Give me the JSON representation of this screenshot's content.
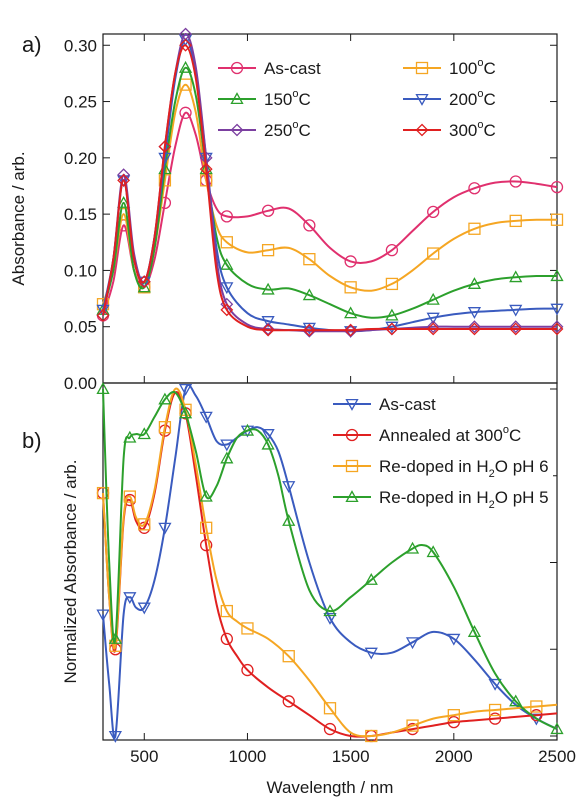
{
  "chart_data": [
    {
      "panel_label": "a)",
      "type": "line",
      "xlabel": "",
      "ylabel": "Absorbance / arb.",
      "xlim": [
        300,
        2500
      ],
      "ylim": [
        0.0,
        0.31
      ],
      "y_ticks": [
        "0.00",
        "0.05",
        "0.10",
        "0.15",
        "0.20",
        "0.25",
        "0.30"
      ],
      "y_tick_values": [
        0.0,
        0.05,
        0.1,
        0.15,
        0.2,
        0.25,
        0.3
      ],
      "legend_position": "top-right",
      "grid": false,
      "series": [
        {
          "name": "As-cast",
          "label_main": "As-cast",
          "label_sup": "",
          "label_tail": "",
          "color": "#e0306e",
          "marker": "circle",
          "x": [
            300,
            350,
            400,
            450,
            500,
            550,
            600,
            650,
            700,
            750,
            800,
            850,
            900,
            1000,
            1100,
            1200,
            1300,
            1400,
            1500,
            1600,
            1700,
            1800,
            1900,
            2000,
            2100,
            2200,
            2300,
            2400,
            2500
          ],
          "y": [
            0.06,
            0.09,
            0.14,
            0.1,
            0.085,
            0.11,
            0.16,
            0.21,
            0.24,
            0.22,
            0.18,
            0.155,
            0.148,
            0.148,
            0.153,
            0.155,
            0.14,
            0.12,
            0.108,
            0.108,
            0.118,
            0.135,
            0.152,
            0.165,
            0.173,
            0.178,
            0.179,
            0.177,
            0.174
          ]
        },
        {
          "name": "100°C",
          "label_main": "100",
          "label_sup": "o",
          "label_tail": "C",
          "color": "#f5a623",
          "marker": "square",
          "x": [
            300,
            350,
            400,
            450,
            500,
            550,
            600,
            650,
            700,
            750,
            800,
            850,
            900,
            1000,
            1100,
            1200,
            1300,
            1400,
            1500,
            1600,
            1700,
            1800,
            1900,
            2000,
            2100,
            2200,
            2300,
            2400,
            2500
          ],
          "y": [
            0.07,
            0.1,
            0.15,
            0.1,
            0.085,
            0.12,
            0.18,
            0.24,
            0.265,
            0.24,
            0.18,
            0.14,
            0.125,
            0.116,
            0.118,
            0.12,
            0.11,
            0.095,
            0.085,
            0.082,
            0.088,
            0.1,
            0.115,
            0.128,
            0.137,
            0.142,
            0.144,
            0.145,
            0.145
          ]
        },
        {
          "name": "150°C",
          "label_main": "150",
          "label_sup": "o",
          "label_tail": "C",
          "color": "#2ca02c",
          "marker": "triangle-up",
          "x": [
            300,
            350,
            400,
            450,
            500,
            550,
            600,
            650,
            700,
            750,
            800,
            850,
            900,
            1000,
            1100,
            1200,
            1300,
            1400,
            1500,
            1600,
            1700,
            1800,
            1900,
            2000,
            2100,
            2200,
            2300,
            2400,
            2500
          ],
          "y": [
            0.065,
            0.1,
            0.16,
            0.1,
            0.085,
            0.12,
            0.19,
            0.25,
            0.28,
            0.255,
            0.19,
            0.13,
            0.105,
            0.088,
            0.083,
            0.084,
            0.078,
            0.07,
            0.062,
            0.058,
            0.06,
            0.066,
            0.074,
            0.082,
            0.088,
            0.092,
            0.094,
            0.095,
            0.095
          ]
        },
        {
          "name": "200°C",
          "label_main": "200",
          "label_sup": "o",
          "label_tail": "C",
          "color": "#3a5bbf",
          "marker": "triangle-down",
          "x": [
            300,
            350,
            400,
            450,
            500,
            550,
            600,
            650,
            700,
            750,
            800,
            850,
            900,
            1000,
            1100,
            1200,
            1300,
            1400,
            1500,
            1600,
            1700,
            1800,
            1900,
            2000,
            2100,
            2200,
            2300,
            2400,
            2500
          ],
          "y": [
            0.065,
            0.11,
            0.18,
            0.11,
            0.09,
            0.13,
            0.2,
            0.27,
            0.305,
            0.275,
            0.2,
            0.12,
            0.085,
            0.062,
            0.055,
            0.052,
            0.049,
            0.047,
            0.046,
            0.047,
            0.05,
            0.054,
            0.058,
            0.061,
            0.063,
            0.064,
            0.065,
            0.066,
            0.066
          ]
        },
        {
          "name": "250°C",
          "label_main": "250",
          "label_sup": "o",
          "label_tail": "C",
          "color": "#7b3fa0",
          "marker": "diamond",
          "x": [
            300,
            350,
            400,
            450,
            500,
            550,
            600,
            650,
            700,
            750,
            800,
            850,
            900,
            1000,
            1100,
            1200,
            1300,
            1400,
            1500,
            1600,
            1700,
            1800,
            1900,
            2000,
            2100,
            2200,
            2300,
            2400,
            2500
          ],
          "y": [
            0.06,
            0.11,
            0.185,
            0.115,
            0.09,
            0.13,
            0.21,
            0.275,
            0.31,
            0.28,
            0.2,
            0.11,
            0.07,
            0.052,
            0.048,
            0.047,
            0.046,
            0.046,
            0.046,
            0.047,
            0.048,
            0.049,
            0.05,
            0.05,
            0.05,
            0.05,
            0.05,
            0.05,
            0.05
          ]
        },
        {
          "name": "300°C",
          "label_main": "300",
          "label_sup": "o",
          "label_tail": "C",
          "color": "#e02020",
          "marker": "diamond",
          "x": [
            300,
            350,
            400,
            450,
            500,
            550,
            600,
            650,
            700,
            750,
            800,
            850,
            900,
            1000,
            1100,
            1200,
            1300,
            1400,
            1500,
            1600,
            1700,
            1800,
            1900,
            2000,
            2100,
            2200,
            2300,
            2400,
            2500
          ],
          "y": [
            0.06,
            0.11,
            0.18,
            0.11,
            0.09,
            0.13,
            0.21,
            0.275,
            0.3,
            0.27,
            0.19,
            0.1,
            0.065,
            0.05,
            0.047,
            0.047,
            0.047,
            0.047,
            0.047,
            0.048,
            0.048,
            0.048,
            0.048,
            0.048,
            0.048,
            0.048,
            0.048,
            0.048,
            0.048
          ]
        }
      ]
    },
    {
      "panel_label": "b)",
      "type": "line",
      "xlabel": "Wavelength / nm",
      "ylabel": "Normalized Absorbance / arb.",
      "xlim": [
        300,
        2500
      ],
      "x_ticks": [
        "500",
        "1000",
        "1500",
        "2000",
        "2500"
      ],
      "x_tick_values": [
        500,
        1000,
        1500,
        2000,
        2500
      ],
      "ylim": [
        0,
        1
      ],
      "legend_position": "top-right",
      "grid": false,
      "series": [
        {
          "name": "As-cast",
          "label_main": "As-cast",
          "label_sub": "",
          "label_tail": "",
          "color": "#3a5bbf",
          "marker": "triangle-down",
          "x": [
            300,
            330,
            360,
            400,
            430,
            460,
            500,
            550,
            600,
            650,
            700,
            750,
            800,
            850,
            900,
            950,
            1000,
            1050,
            1100,
            1150,
            1200,
            1300,
            1400,
            1500,
            1600,
            1700,
            1800,
            1900,
            2000,
            2100,
            2200,
            2300,
            2400,
            2500
          ],
          "y": [
            0.35,
            0.15,
            0.0,
            0.35,
            0.4,
            0.37,
            0.37,
            0.45,
            0.6,
            0.8,
            1.0,
            0.98,
            0.92,
            0.85,
            0.84,
            0.86,
            0.88,
            0.89,
            0.87,
            0.82,
            0.72,
            0.5,
            0.34,
            0.27,
            0.24,
            0.24,
            0.27,
            0.3,
            0.28,
            0.22,
            0.15,
            0.09,
            0.05,
            0.02
          ]
        },
        {
          "name": "Annealed at 300°C",
          "label_main": "Annealed at 300",
          "label_sub": "o",
          "label_tail": "C",
          "color": "#e02020",
          "marker": "circle",
          "x": [
            300,
            330,
            360,
            400,
            430,
            460,
            500,
            550,
            600,
            650,
            700,
            750,
            800,
            850,
            900,
            950,
            1000,
            1100,
            1200,
            1300,
            1400,
            1500,
            1600,
            1700,
            1800,
            1900,
            2000,
            2100,
            2200,
            2300,
            2400,
            2500
          ],
          "y": [
            0.7,
            0.4,
            0.25,
            0.62,
            0.68,
            0.62,
            0.6,
            0.7,
            0.88,
            0.99,
            0.93,
            0.75,
            0.55,
            0.38,
            0.28,
            0.23,
            0.19,
            0.14,
            0.1,
            0.06,
            0.02,
            0.0,
            0.0,
            0.01,
            0.02,
            0.03,
            0.04,
            0.045,
            0.05,
            0.055,
            0.06,
            0.065
          ]
        },
        {
          "name": "Re-doped in H2O pH 6",
          "label_main": "Re-doped in H",
          "label_sub": "2",
          "label_tail": "O pH 6",
          "color": "#f5a623",
          "marker": "square",
          "x": [
            300,
            330,
            360,
            400,
            430,
            460,
            500,
            550,
            600,
            650,
            700,
            750,
            800,
            850,
            900,
            950,
            1000,
            1100,
            1200,
            1300,
            1400,
            1500,
            1600,
            1700,
            1800,
            1900,
            2000,
            2100,
            2200,
            2300,
            2400,
            2500
          ],
          "y": [
            0.7,
            0.4,
            0.26,
            0.63,
            0.69,
            0.63,
            0.61,
            0.71,
            0.89,
            1.0,
            0.94,
            0.78,
            0.6,
            0.45,
            0.36,
            0.33,
            0.31,
            0.28,
            0.23,
            0.16,
            0.08,
            0.01,
            0.0,
            0.01,
            0.03,
            0.05,
            0.06,
            0.07,
            0.075,
            0.08,
            0.085,
            0.09
          ]
        },
        {
          "name": "Re-doped in H2O pH 5",
          "label_main": "Re-doped in H",
          "label_sub": "2",
          "label_tail": "O pH 5",
          "color": "#2ca02c",
          "marker": "triangle-up",
          "x": [
            300,
            330,
            360,
            400,
            430,
            460,
            500,
            550,
            600,
            650,
            700,
            750,
            800,
            850,
            900,
            950,
            1000,
            1050,
            1100,
            1150,
            1200,
            1300,
            1400,
            1500,
            1600,
            1700,
            1800,
            1850,
            1900,
            2000,
            2100,
            2200,
            2300,
            2400,
            2500
          ],
          "y": [
            1.0,
            0.5,
            0.28,
            0.8,
            0.86,
            0.87,
            0.87,
            0.92,
            0.97,
            0.99,
            0.93,
            0.82,
            0.69,
            0.72,
            0.8,
            0.86,
            0.88,
            0.88,
            0.84,
            0.75,
            0.62,
            0.42,
            0.36,
            0.4,
            0.45,
            0.5,
            0.54,
            0.55,
            0.53,
            0.43,
            0.3,
            0.18,
            0.1,
            0.05,
            0.02
          ]
        }
      ]
    }
  ]
}
